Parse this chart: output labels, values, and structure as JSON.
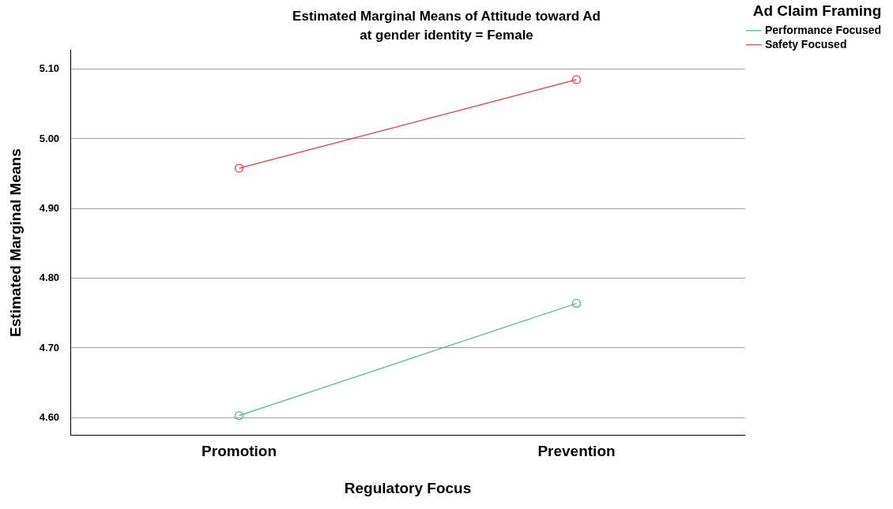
{
  "chart_data": {
    "type": "line",
    "title": "Estimated Marginal Means of Attitude toward Ad",
    "subtitle": "at gender identity = Female",
    "xlabel": "Regulatory Focus",
    "ylabel": "Estimated Marginal Means",
    "legend_title": "Ad Claim Framing",
    "categories": [
      "Promotion",
      "Prevention"
    ],
    "series": [
      {
        "name": "Performance Focused",
        "color": "#3dbf6e",
        "values": [
          4.603,
          4.764
        ]
      },
      {
        "name": "Safety Focused",
        "color": "#e8383d",
        "values": [
          4.958,
          5.085
        ]
      }
    ],
    "ylim": [
      4.575,
      5.127
    ],
    "yticks": [
      {
        "value": 4.6,
        "label": "4.60"
      },
      {
        "value": 4.7,
        "label": "4.70"
      },
      {
        "value": 4.8,
        "label": "4.80"
      },
      {
        "value": 4.9,
        "label": "4.90"
      },
      {
        "value": 5.0,
        "label": "5.00"
      },
      {
        "value": 5.1,
        "label": "5.10"
      }
    ],
    "grid": "y",
    "legend": "top right",
    "marker": "circle",
    "line_style": "solid"
  }
}
